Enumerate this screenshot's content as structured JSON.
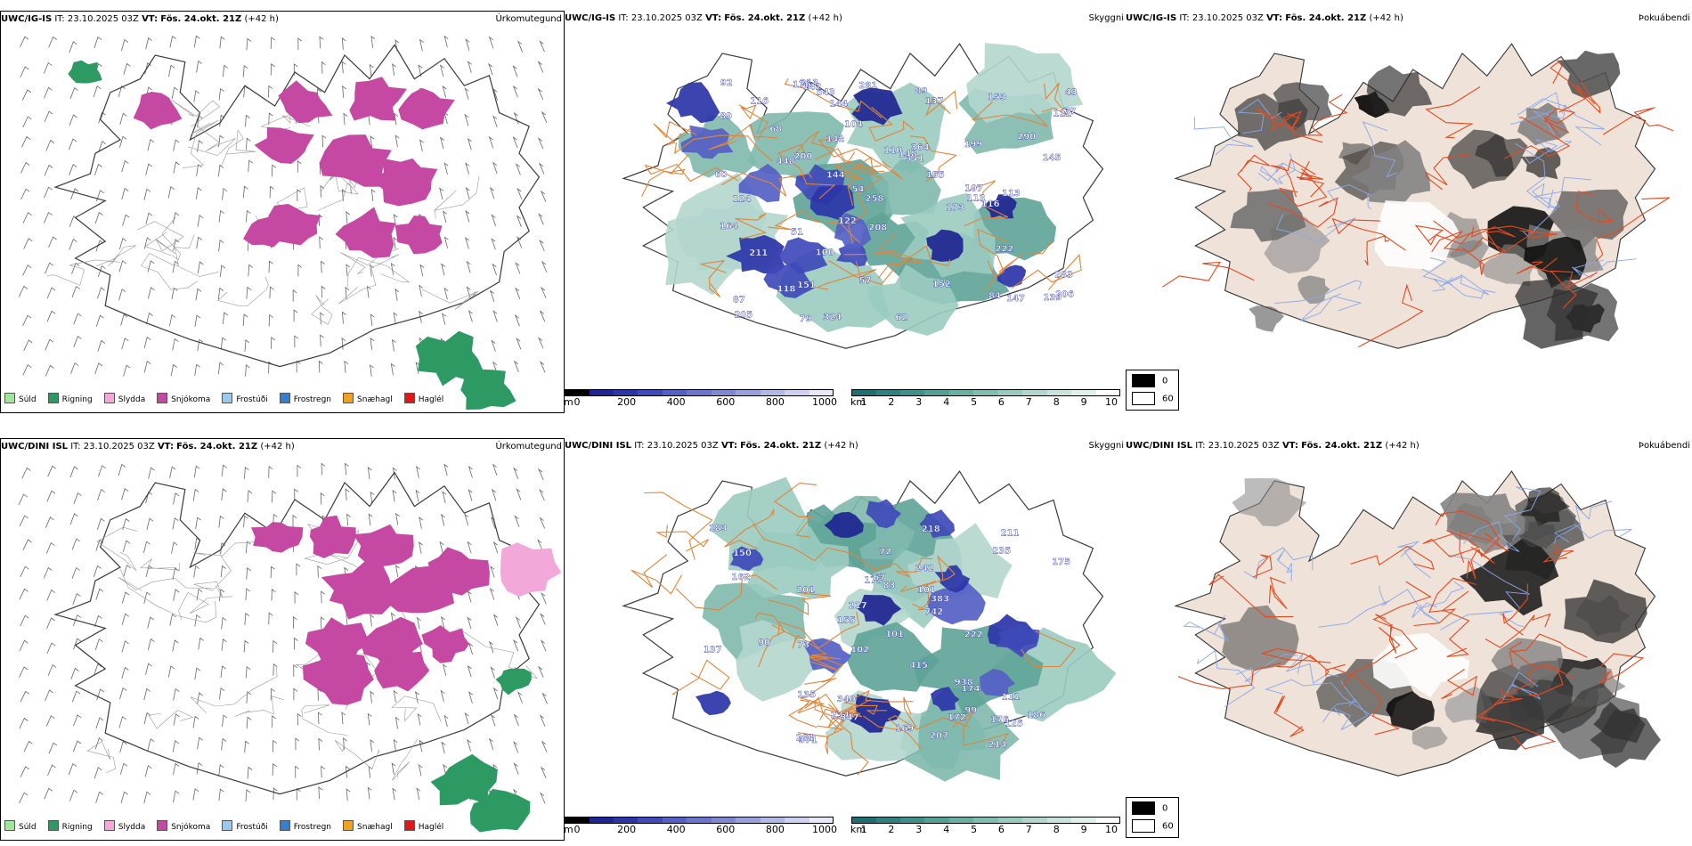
{
  "rows": [
    {
      "model": "UWC/IG-IS",
      "it_label": "IT:",
      "it_value": "23.10.2025 03Z",
      "vt_label": "VT:",
      "vt_value": "Fös. 24.okt. 21Z",
      "lead": "(+42 h)",
      "titles": {
        "precip": "Úrkomutegund",
        "cloud": "Skyggni",
        "fog": "Þokuábendi"
      },
      "visibility_labels": [
        "543",
        "341",
        "144",
        "364",
        "113",
        "113",
        "147",
        "79",
        "54",
        "68",
        "89",
        "116",
        "100",
        "60",
        "87",
        "77",
        "84",
        "51",
        "145",
        "206",
        "290",
        "281",
        "205",
        "213",
        "283",
        "122",
        "141",
        "211",
        "448",
        "142",
        "124",
        "164",
        "173",
        "199",
        "324",
        "258",
        "176",
        "144",
        "200",
        "148",
        "152",
        "208",
        "107",
        "137",
        "116",
        "92",
        "110",
        "62",
        "122",
        "139",
        "57",
        "155",
        "118",
        "222",
        "151",
        "153",
        "89",
        "43",
        "104"
      ]
    },
    {
      "model": "UWC/DINI ISL",
      "it_label": "IT:",
      "it_value": "23.10.2025 03Z",
      "vt_label": "VT:",
      "vt_value": "Fös. 24.okt. 21Z",
      "lead": "(+42 h)",
      "titles": {
        "precip": "Úrkomutegund",
        "cloud": "Skyggni",
        "fog": "Þokuábendi"
      },
      "visibility_labels": [
        "174",
        "201",
        "211",
        "742",
        "169",
        "175",
        "938",
        "218",
        "415",
        "214",
        "172",
        "340",
        "222",
        "155",
        "175",
        "242",
        "162",
        "383",
        "83",
        "217",
        "234",
        "137",
        "183",
        "201",
        "125",
        "371",
        "176",
        "186",
        "347",
        "235",
        "150",
        "207",
        "135",
        "102",
        "111",
        "90",
        "101",
        "72",
        "101",
        "67",
        "99",
        "73"
      ]
    }
  ],
  "precip_legend": [
    {
      "label": "Súld",
      "color": "#9ee89a"
    },
    {
      "label": "Rigning",
      "color": "#2e9a63"
    },
    {
      "label": "Slydda",
      "color": "#f2a8d8"
    },
    {
      "label": "Snjókoma",
      "color": "#c548a2"
    },
    {
      "label": "Frostúði",
      "color": "#9cc8f0"
    },
    {
      "label": "Frostregn",
      "color": "#3a7ec8"
    },
    {
      "label": "Snæhagl",
      "color": "#f0a020"
    },
    {
      "label": "Haglél",
      "color": "#e01818"
    }
  ],
  "ceiling_bar": {
    "unit": "m",
    "ticks": [
      "0",
      "200",
      "400",
      "600",
      "800",
      "1000"
    ],
    "colors": [
      "#000000",
      "#1e2590",
      "#2b35a8",
      "#3f4ab8",
      "#5560c4",
      "#6c75cc",
      "#8188d2",
      "#9aa0da",
      "#b3b8e4",
      "#cdd0ee",
      "#e8e9f7"
    ]
  },
  "visibility_bar": {
    "unit": "km",
    "ticks": [
      "1",
      "2",
      "3",
      "4",
      "5",
      "6",
      "7",
      "8",
      "9",
      "10"
    ],
    "colors": [
      "#1f6f72",
      "#2f8080",
      "#3f8f8b",
      "#55a096",
      "#6aafa2",
      "#82bdb1",
      "#9ac9bf",
      "#b2d6cd",
      "#cae3dc",
      "#e2f0ec",
      "#ffffff"
    ]
  },
  "fog_legend": [
    {
      "label": "0",
      "color": "#000000"
    },
    {
      "label": "60",
      "color": "#ffffff"
    }
  ],
  "colors": {
    "coast": "#3a3a3a",
    "roads": "#e0853a",
    "fog_land": "#efe2d8",
    "fog_roads": "#e34a1f",
    "fog_rivers": "#8aa8ea"
  }
}
